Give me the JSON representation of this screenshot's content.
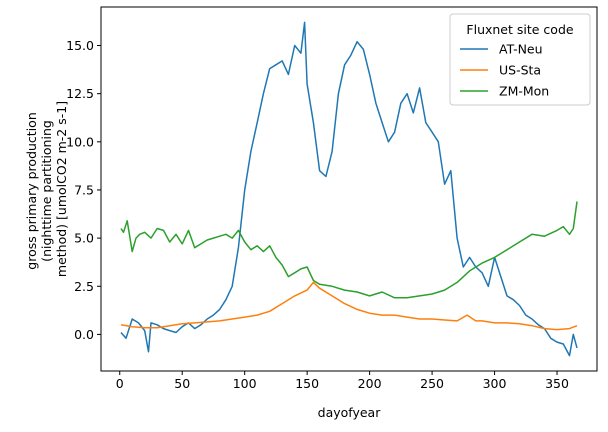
{
  "chart_data": {
    "type": "line",
    "title": "",
    "xlabel": "dayofyear",
    "ylabel_lines": [
      "gross primary production",
      "(nighttime partitioning",
      "method) [umolCO2 m-2 s-1]"
    ],
    "xlim": [
      -15,
      382
    ],
    "ylim": [
      -1.9,
      17.0
    ],
    "xticks": [
      0,
      50,
      100,
      150,
      200,
      250,
      300,
      350
    ],
    "yticks": [
      0.0,
      2.5,
      5.0,
      7.5,
      10.0,
      12.5,
      15.0
    ],
    "ytick_labels": [
      "0.0",
      "2.5",
      "5.0",
      "7.5",
      "10.0",
      "12.5",
      "15.0"
    ],
    "grid": false,
    "legend": {
      "title": "Fluxnet site code",
      "placement": "top-right",
      "entries": [
        "AT-Neu",
        "US-Sta",
        "ZM-Mon"
      ]
    },
    "series": [
      {
        "name": "AT-Neu",
        "color": "#1f77b4",
        "x": [
          1,
          5,
          10,
          15,
          20,
          23,
          25,
          30,
          35,
          40,
          45,
          50,
          55,
          60,
          65,
          70,
          75,
          80,
          85,
          90,
          95,
          100,
          105,
          110,
          115,
          120,
          125,
          130,
          135,
          140,
          145,
          148,
          150,
          155,
          160,
          165,
          170,
          175,
          180,
          185,
          190,
          195,
          200,
          205,
          210,
          215,
          220,
          225,
          230,
          235,
          240,
          245,
          250,
          255,
          260,
          265,
          270,
          275,
          280,
          285,
          290,
          295,
          300,
          305,
          310,
          315,
          320,
          325,
          330,
          335,
          340,
          345,
          350,
          355,
          360,
          363,
          366
        ],
        "y": [
          0.1,
          -0.2,
          0.8,
          0.6,
          0.2,
          -0.9,
          0.6,
          0.5,
          0.3,
          0.2,
          0.1,
          0.4,
          0.6,
          0.3,
          0.5,
          0.8,
          1.0,
          1.3,
          1.8,
          2.5,
          4.5,
          7.5,
          9.5,
          11.0,
          12.5,
          13.8,
          14.0,
          14.2,
          13.5,
          15.0,
          14.6,
          16.2,
          13.0,
          11.0,
          8.5,
          8.2,
          9.5,
          12.5,
          14.0,
          14.5,
          15.2,
          14.8,
          13.5,
          12.0,
          11.0,
          10.0,
          10.5,
          12.0,
          12.5,
          11.5,
          12.8,
          11.0,
          10.5,
          10.0,
          7.8,
          8.5,
          5.0,
          3.5,
          4.0,
          3.5,
          3.2,
          2.5,
          4.0,
          3.0,
          2.0,
          1.8,
          1.5,
          1.0,
          0.8,
          0.5,
          0.3,
          -0.2,
          -0.4,
          -0.5,
          -1.1,
          0.0,
          -0.7
        ]
      },
      {
        "name": "US-Sta",
        "color": "#ff7f0e",
        "x": [
          1,
          10,
          20,
          30,
          40,
          50,
          60,
          70,
          80,
          90,
          100,
          110,
          120,
          130,
          140,
          150,
          155,
          160,
          170,
          180,
          190,
          200,
          210,
          220,
          230,
          240,
          250,
          260,
          270,
          278,
          285,
          290,
          300,
          310,
          320,
          330,
          340,
          350,
          360,
          366
        ],
        "y": [
          0.5,
          0.4,
          0.35,
          0.35,
          0.45,
          0.55,
          0.6,
          0.65,
          0.7,
          0.8,
          0.9,
          1.0,
          1.2,
          1.6,
          2.0,
          2.3,
          2.7,
          2.4,
          2.0,
          1.6,
          1.3,
          1.1,
          1.0,
          1.0,
          0.9,
          0.8,
          0.8,
          0.75,
          0.7,
          1.0,
          0.7,
          0.7,
          0.6,
          0.6,
          0.55,
          0.45,
          0.3,
          0.25,
          0.3,
          0.45
        ]
      },
      {
        "name": "ZM-Mon",
        "color": "#2ca02c",
        "x": [
          1,
          3,
          6,
          10,
          13,
          16,
          20,
          25,
          30,
          35,
          40,
          45,
          50,
          55,
          60,
          65,
          70,
          75,
          80,
          85,
          90,
          95,
          100,
          105,
          110,
          115,
          120,
          125,
          130,
          135,
          140,
          145,
          150,
          155,
          160,
          170,
          180,
          190,
          200,
          210,
          220,
          230,
          240,
          250,
          260,
          270,
          280,
          290,
          300,
          310,
          320,
          330,
          340,
          350,
          355,
          360,
          363,
          366
        ],
        "y": [
          5.5,
          5.3,
          5.9,
          4.3,
          5.0,
          5.2,
          5.3,
          5.0,
          5.5,
          5.4,
          4.8,
          5.2,
          4.7,
          5.4,
          4.5,
          4.7,
          4.9,
          5.0,
          5.1,
          5.2,
          5.0,
          5.4,
          4.8,
          4.4,
          4.6,
          4.3,
          4.6,
          4.0,
          3.6,
          3.0,
          3.2,
          3.4,
          3.5,
          2.8,
          2.6,
          2.5,
          2.3,
          2.2,
          2.0,
          2.2,
          1.9,
          1.9,
          2.0,
          2.1,
          2.3,
          2.7,
          3.3,
          3.7,
          4.0,
          4.4,
          4.8,
          5.2,
          5.1,
          5.4,
          5.6,
          5.2,
          5.5,
          6.9
        ]
      }
    ]
  }
}
